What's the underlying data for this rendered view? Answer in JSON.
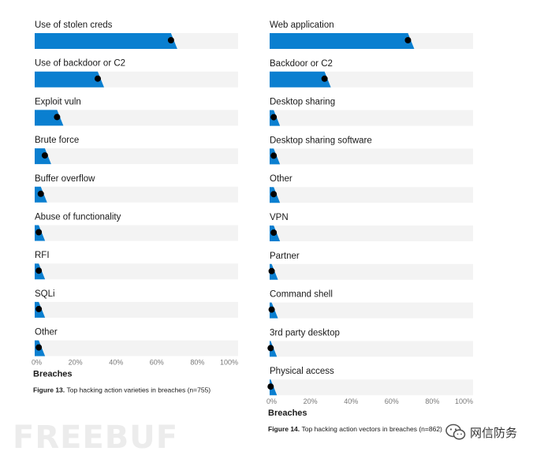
{
  "chart_data": [
    {
      "type": "bar",
      "title": "",
      "caption_label": "Figure 13.",
      "caption_text": "Top hacking action varieties in breaches (n=755)",
      "xlabel": "Breaches",
      "xlim": [
        0,
        100
      ],
      "ticks": [
        "0%",
        "20%",
        "40%",
        "60%",
        "80%",
        "100%"
      ],
      "categories": [
        "Use of stolen creds",
        "Use of backdoor or C2",
        "Exploit vuln",
        "Brute force",
        "Buffer overflow",
        "Abuse of functionality",
        "RFI",
        "SQLi",
        "Other"
      ],
      "values": [
        67,
        31,
        11,
        5,
        3,
        2,
        2,
        2,
        2
      ],
      "grid": false,
      "legend": "none"
    },
    {
      "type": "bar",
      "title": "",
      "caption_label": "Figure 14.",
      "caption_text": "Top hacking action vectors in breaches (n=862)",
      "xlabel": "Breaches",
      "xlim": [
        0,
        100
      ],
      "ticks": [
        "0%",
        "20%",
        "40%",
        "60%",
        "80%",
        "100%"
      ],
      "categories": [
        "Web application",
        "Backdoor or C2",
        "Desktop sharing",
        "Desktop sharing software",
        "Other",
        "VPN",
        "Partner",
        "Command shell",
        "3rd party desktop",
        "Physical access"
      ],
      "values": [
        68,
        27,
        2,
        2,
        2,
        2,
        1,
        1,
        0.5,
        0.5
      ],
      "grid": false,
      "legend": "none"
    }
  ],
  "colors": {
    "bar": "#0a7fd0",
    "track": "#f3f3f3",
    "marker": "#000000",
    "text": "#1a1a1a",
    "tick": "#777777"
  },
  "watermark": {
    "left_text": "FREEBUF",
    "right_text": "网信防务",
    "right_icon": "wechat-icon"
  }
}
